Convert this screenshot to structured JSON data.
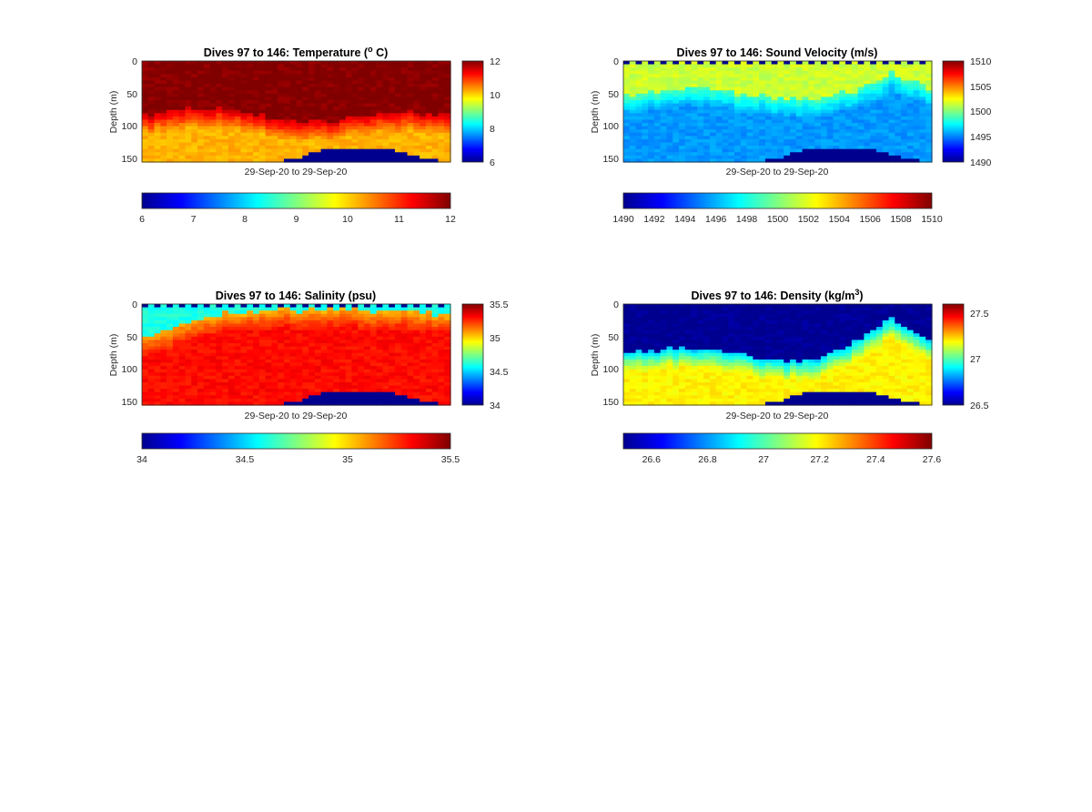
{
  "figure": {
    "background": "#ffffff",
    "colormap": "jet",
    "no_data_color": "#00008f"
  },
  "chart_data": [
    {
      "type": "heatmap",
      "panel": "temperature",
      "title": "Dives 97 to 146: Temperature (",
      "title_sup": "o",
      "title_tail": " C)",
      "xlabel": "29-Sep-20 to 29-Sep-20",
      "ylabel": "Depth (m)",
      "yticks": [
        "0",
        "50",
        "100",
        "150"
      ],
      "ylim": [
        0,
        155
      ],
      "clim": [
        6,
        12
      ],
      "colorbar_side_ticks": [
        "12",
        "10",
        "8",
        "6"
      ],
      "colorbar_bottom_ticks": [
        "6",
        "7",
        "8",
        "9",
        "10",
        "11",
        "12"
      ],
      "profile": {
        "surface_value": 12,
        "mixed_layer_depth": [
          85,
          75,
          72,
          82,
          95,
          92,
          80,
          78,
          85
        ],
        "deep_value": 10.2,
        "gradient_value_top": 11.5
      },
      "seafloor_depth": [
        155,
        155,
        155,
        155,
        155,
        155,
        155,
        150,
        138,
        134,
        134,
        134,
        140,
        150,
        155
      ]
    },
    {
      "type": "heatmap",
      "panel": "sound_velocity",
      "title": "Dives 97 to 146: Sound Velocity (m/s)",
      "xlabel": "29-Sep-20 to 29-Sep-20",
      "ylabel": "Depth (m)",
      "yticks": [
        "0",
        "50",
        "100",
        "150"
      ],
      "ylim": [
        0,
        155
      ],
      "clim": [
        1490,
        1510
      ],
      "colorbar_side_ticks": [
        "1510",
        "1505",
        "1500",
        "1495",
        "1490"
      ],
      "colorbar_bottom_ticks": [
        "1490",
        "1492",
        "1494",
        "1496",
        "1498",
        "1500",
        "1502",
        "1504",
        "1506",
        "1508",
        "1510"
      ],
      "profile": {
        "surface_value": 1501.5,
        "mixed_layer_depth": [
          55,
          45,
          40,
          50,
          55,
          60,
          45,
          20,
          40
        ],
        "deep_value": 1495.5,
        "gradient_value_top": 1499
      },
      "seafloor_depth": [
        155,
        155,
        155,
        155,
        155,
        155,
        155,
        150,
        138,
        134,
        134,
        134,
        140,
        150,
        155
      ]
    },
    {
      "type": "heatmap",
      "panel": "salinity",
      "title": "Dives 97 to 146: Salinity (psu)",
      "xlabel": "29-Sep-20 to 29-Sep-20",
      "ylabel": "Depth (m)",
      "yticks": [
        "0",
        "50",
        "100",
        "150"
      ],
      "ylim": [
        0,
        155
      ],
      "clim": [
        34,
        35.5
      ],
      "colorbar_side_ticks": [
        "35.5",
        "35",
        "34.5",
        "34"
      ],
      "colorbar_bottom_ticks": [
        "34",
        "34.5",
        "35",
        "35.5"
      ],
      "profile": {
        "surface_value": 34.6,
        "mixed_layer_depth": [
          55,
          30,
          15,
          10,
          10,
          8,
          10,
          12,
          15
        ],
        "deep_value": 35.3,
        "gradient_value_top": 35.05
      },
      "seafloor_depth": [
        155,
        155,
        155,
        155,
        155,
        155,
        155,
        150,
        138,
        134,
        134,
        134,
        140,
        150,
        155
      ]
    },
    {
      "type": "heatmap",
      "panel": "density",
      "title": "Dives 97 to 146: Density (kg/m",
      "title_sup": "3",
      "title_tail": ")",
      "xlabel": "29-Sep-20 to 29-Sep-20",
      "ylabel": "Depth (m)",
      "yticks": [
        "0",
        "50",
        "100",
        "150"
      ],
      "ylim": [
        0,
        155
      ],
      "clim": [
        26.5,
        27.6
      ],
      "colorbar_side_ticks": [
        "27.5",
        "27",
        "26.5"
      ],
      "colorbar_bottom_ticks": [
        "26.6",
        "26.8",
        "27",
        "27.2",
        "27.4",
        "27.6"
      ],
      "profile": {
        "surface_value": 26.5,
        "mixed_layer_depth": [
          75,
          68,
          70,
          78,
          88,
          85,
          60,
          25,
          55
        ],
        "deep_value": 27.2,
        "gradient_value_top": 26.85
      },
      "seafloor_depth": [
        155,
        155,
        155,
        155,
        155,
        155,
        155,
        150,
        138,
        134,
        134,
        134,
        140,
        150,
        155
      ]
    }
  ]
}
